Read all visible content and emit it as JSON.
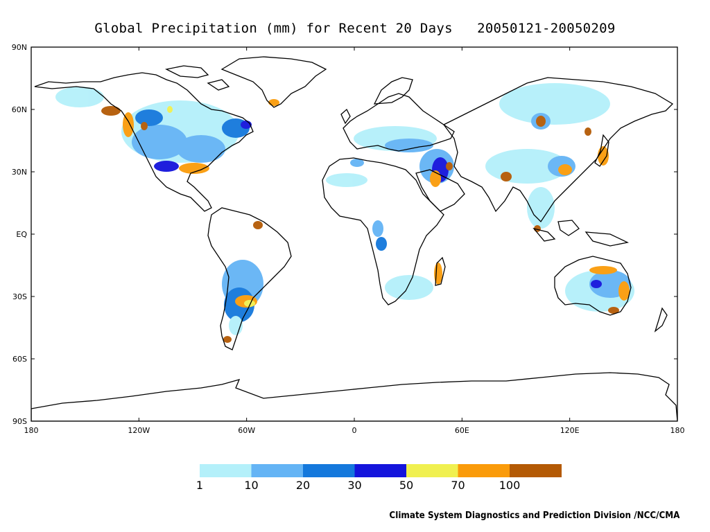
{
  "title": "Global Precipitation (mm) for Recent 20 Days",
  "date_range": "20050121-20050209",
  "credit": "Climate System Diagnostics and Prediction Division /NCC/CMA",
  "lat_ticks": [
    "90N",
    "60N",
    "30N",
    "EQ",
    "30S",
    "60S",
    "90S"
  ],
  "lon_ticks": [
    "180",
    "120W",
    "60W",
    "0",
    "60E",
    "120E",
    "180"
  ],
  "colorbar": {
    "colors": [
      "#b4f0fa",
      "#64b4f5",
      "#1478dc",
      "#1414dc",
      "#f0f050",
      "#fa9b0a",
      "#b45a05"
    ],
    "labels": [
      "1",
      "10",
      "20",
      "30",
      "50",
      "70",
      "100"
    ]
  }
}
